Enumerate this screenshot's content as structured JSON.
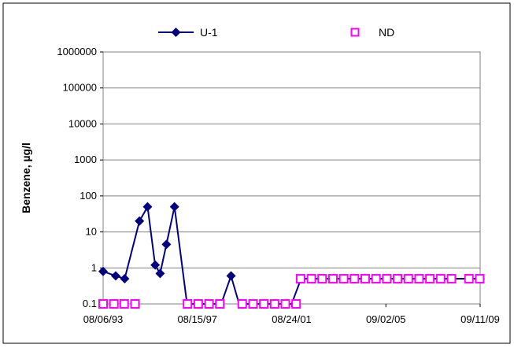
{
  "chart_data": {
    "type": "line",
    "title": "",
    "xlabel": "",
    "ylabel": "Benzene, µg/l",
    "y_scale": "log",
    "ylim": [
      0.1,
      1000000
    ],
    "y_ticks": [
      "0.1",
      "1",
      "10",
      "100",
      "1000",
      "10000",
      "100000",
      "1000000"
    ],
    "xlim": [
      "1993-08-06",
      "2009-09-11"
    ],
    "x_ticks": [
      "08/06/93",
      "08/15/97",
      "08/24/01",
      "09/02/05",
      "09/11/09"
    ],
    "grid": {
      "y_major": true,
      "x": false
    },
    "legend": {
      "position": "top",
      "entries": [
        "U-1",
        "ND"
      ]
    },
    "colors": {
      "u1": "#000080",
      "nd": "#ff00ff",
      "grid": "#808080"
    },
    "series": [
      {
        "name": "U-1",
        "marker": "diamond",
        "points": [
          {
            "x": "1993-08-06",
            "y": 0.8
          },
          {
            "x": "1994-02-18",
            "y": 0.6
          },
          {
            "x": "1994-07-08",
            "y": 0.5
          },
          {
            "x": "1995-02-24",
            "y": 20
          },
          {
            "x": "1995-06-30",
            "y": 50
          },
          {
            "x": "1995-10-27",
            "y": 1.2
          },
          {
            "x": "1996-01-12",
            "y": 0.7
          },
          {
            "x": "1996-04-19",
            "y": 4.5
          },
          {
            "x": "1996-08-23",
            "y": 50
          },
          {
            "x": "1997-03-07",
            "y": 0.1
          },
          {
            "x": "1998-08-21",
            "y": 0.1
          },
          {
            "x": "1999-01-22",
            "y": 0.6
          },
          {
            "x": "1999-05-28",
            "y": 0.1
          },
          {
            "x": "2001-08-24",
            "y": 0.1
          },
          {
            "x": "2002-01-18",
            "y": 0.5
          },
          {
            "x": "2009-09-11",
            "y": 0.5
          }
        ]
      },
      {
        "name": "ND",
        "marker": "open-square",
        "points": [
          {
            "x": "1993-08-06",
            "y": 0.1
          },
          {
            "x": "1994-01-21",
            "y": 0.1
          },
          {
            "x": "1994-07-01",
            "y": 0.1
          },
          {
            "x": "1994-12-16",
            "y": 0.1
          },
          {
            "x": "1997-03-14",
            "y": 0.1
          },
          {
            "x": "1997-08-29",
            "y": 0.1
          },
          {
            "x": "1998-02-13",
            "y": 0.1
          },
          {
            "x": "1998-07-31",
            "y": 0.1
          },
          {
            "x": "1999-07-16",
            "y": 0.1
          },
          {
            "x": "1999-12-31",
            "y": 0.1
          },
          {
            "x": "2000-06-16",
            "y": 0.1
          },
          {
            "x": "2000-12-01",
            "y": 0.1
          },
          {
            "x": "2001-05-18",
            "y": 0.1
          },
          {
            "x": "2001-11-02",
            "y": 0.1
          },
          {
            "x": "2002-01-11",
            "y": 0.5
          },
          {
            "x": "2002-06-28",
            "y": 0.5
          },
          {
            "x": "2002-12-13",
            "y": 0.5
          },
          {
            "x": "2003-05-30",
            "y": 0.5
          },
          {
            "x": "2003-11-14",
            "y": 0.5
          },
          {
            "x": "2004-04-30",
            "y": 0.5
          },
          {
            "x": "2004-10-15",
            "y": 0.5
          },
          {
            "x": "2005-04-01",
            "y": 0.5
          },
          {
            "x": "2005-09-16",
            "y": 0.5
          },
          {
            "x": "2006-03-03",
            "y": 0.5
          },
          {
            "x": "2006-08-18",
            "y": 0.5
          },
          {
            "x": "2007-02-02",
            "y": 0.5
          },
          {
            "x": "2007-07-20",
            "y": 0.5
          },
          {
            "x": "2008-01-04",
            "y": 0.5
          },
          {
            "x": "2008-06-20",
            "y": 0.5
          },
          {
            "x": "2009-03-20",
            "y": 0.5
          },
          {
            "x": "2009-09-04",
            "y": 0.5
          }
        ]
      }
    ]
  }
}
